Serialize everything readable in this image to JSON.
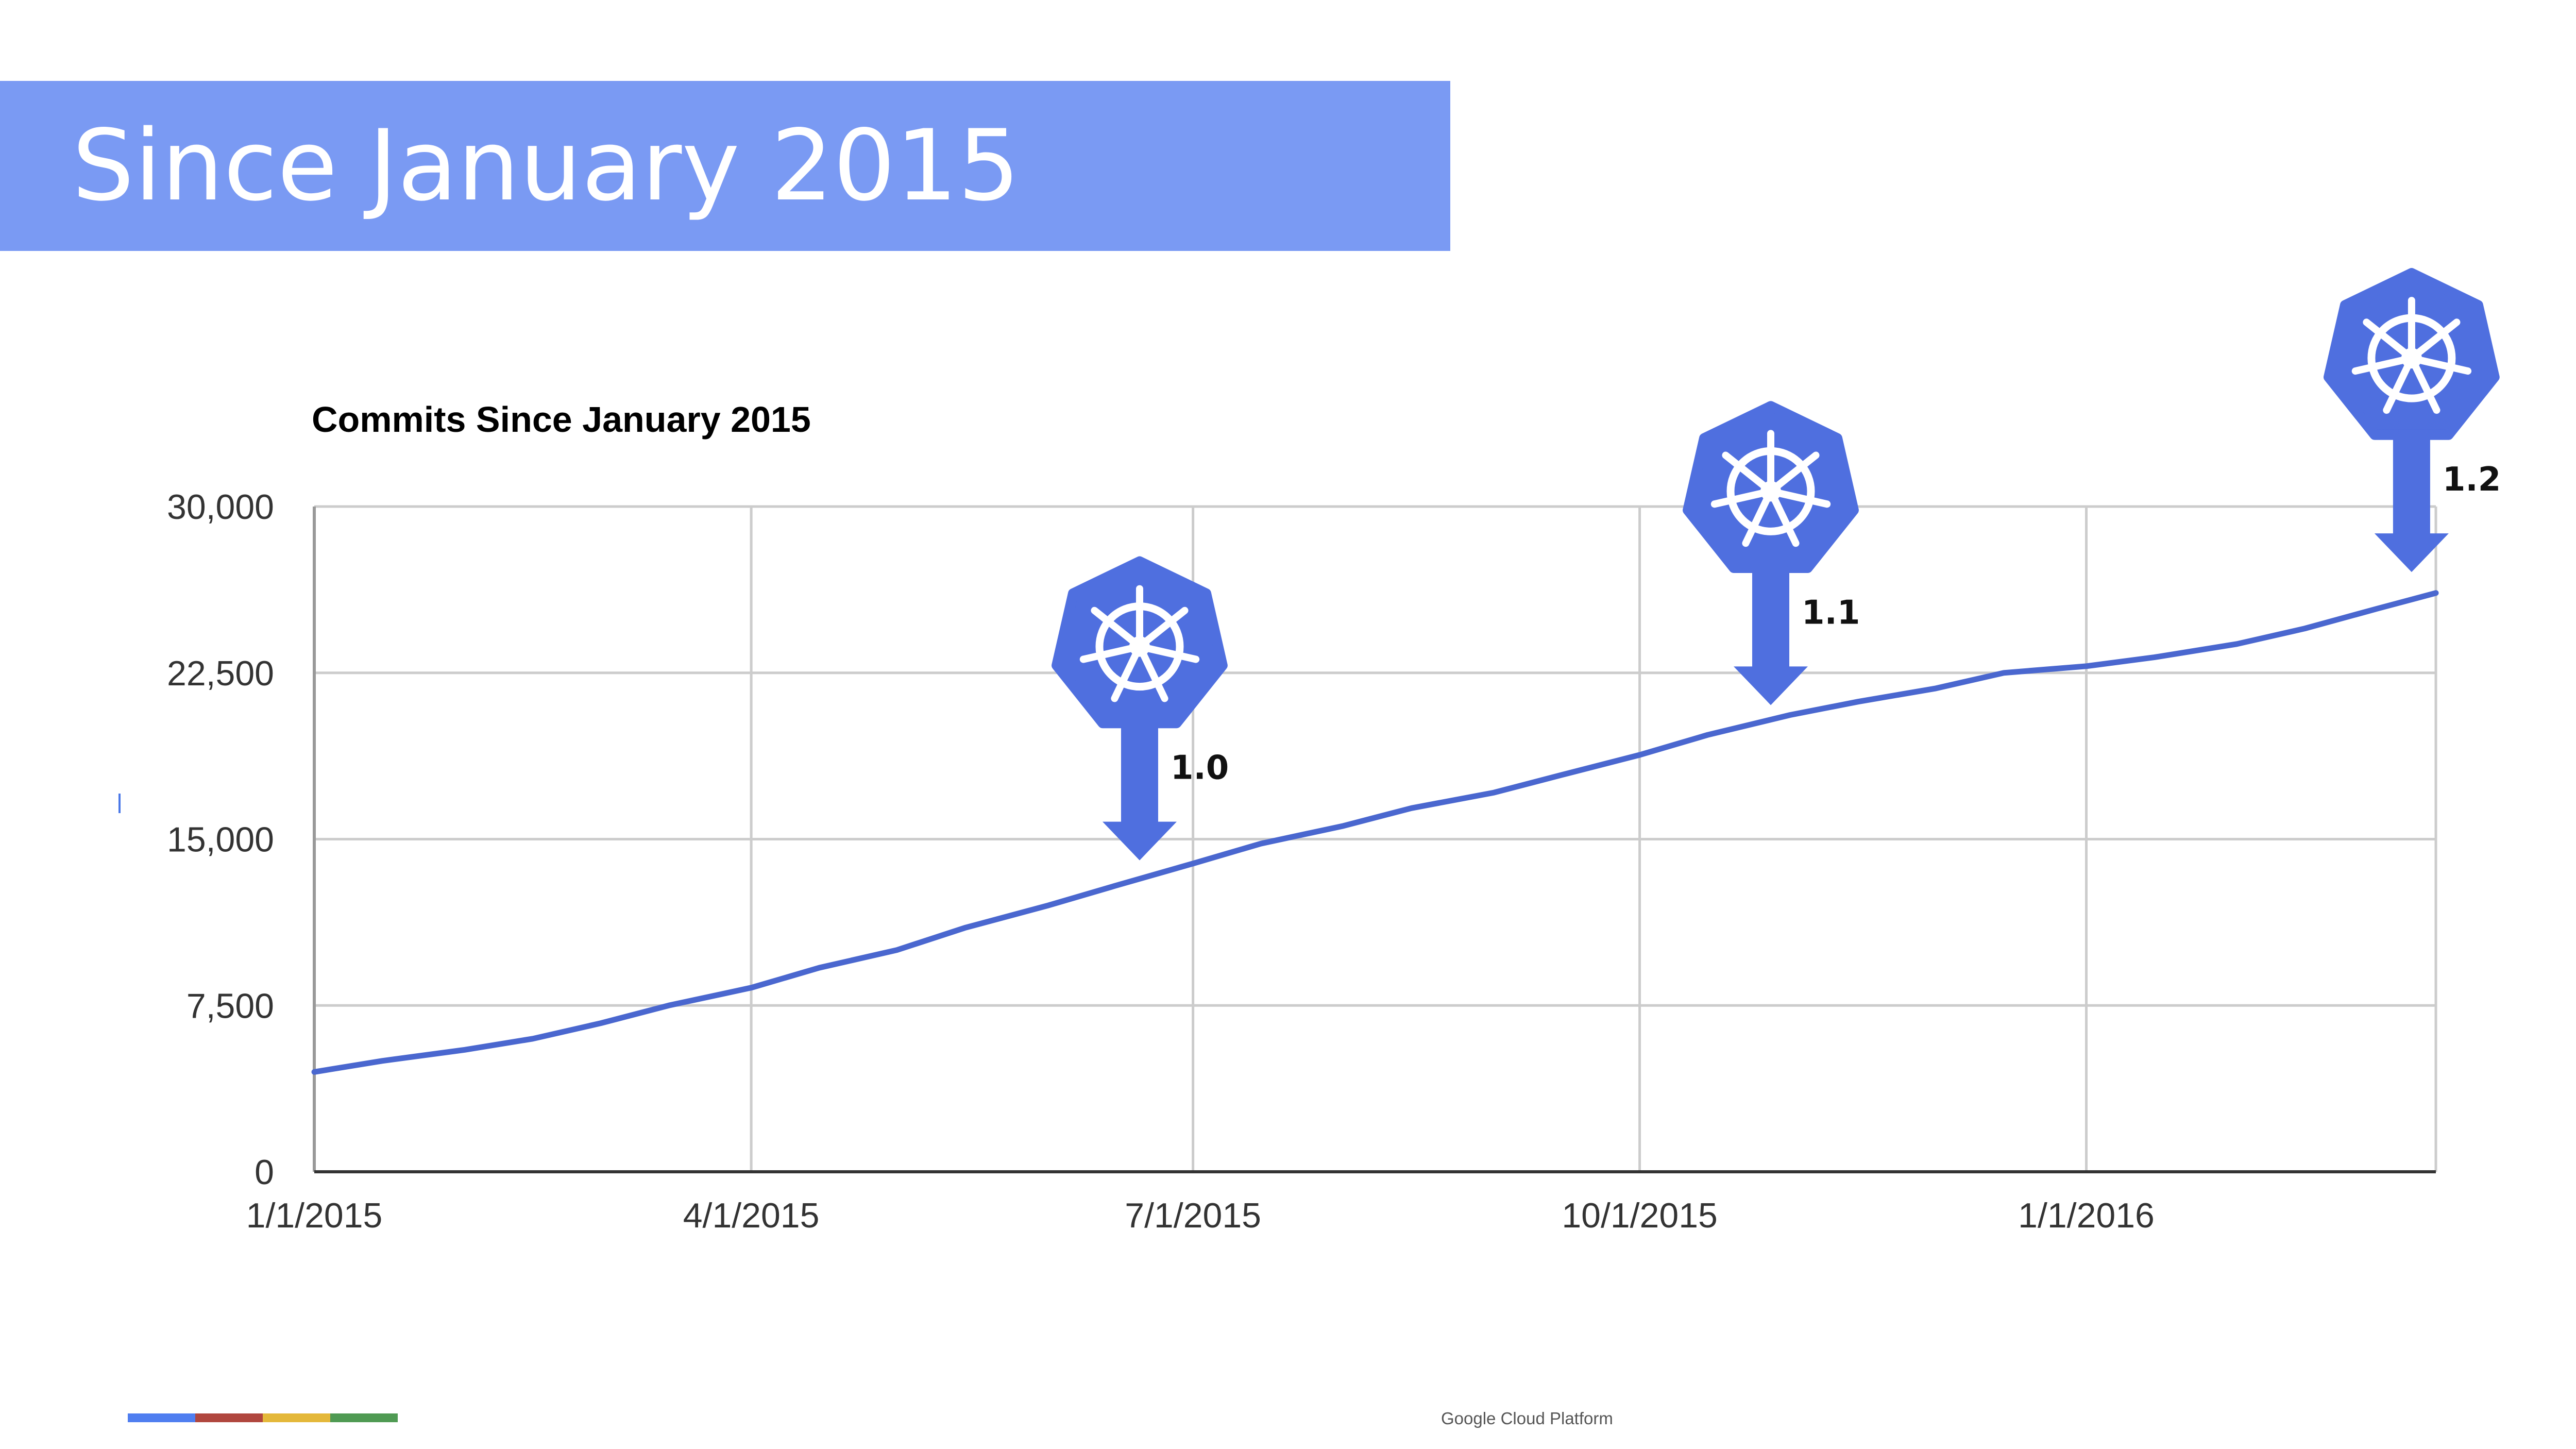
{
  "slide": {
    "title": "Since January 2015",
    "footer": "Google Cloud Platform",
    "title_bar_color": "#7a9af3",
    "footer_stripe_colors": [
      "#4f7ef0",
      "#b0463e",
      "#e4b83a",
      "#4f9a53"
    ]
  },
  "chart_data": {
    "type": "line",
    "title": "Commits Since January 2015",
    "xlabel": "",
    "ylabel": "",
    "x_ticks": [
      "1/1/2015",
      "4/1/2015",
      "7/1/2015",
      "10/1/2015",
      "1/1/2016"
    ],
    "y_ticks": [
      "0",
      "7,500",
      "15,000",
      "22,500",
      "30,000"
    ],
    "ylim": [
      0,
      30000
    ],
    "xlim": [
      "2015-01-01",
      "2016-03-13"
    ],
    "grid": true,
    "legend": "none",
    "line_color": "#4a67cf",
    "series": [
      {
        "x": [
          "2015-01-01",
          "2015-01-15",
          "2015-02-01",
          "2015-02-15",
          "2015-03-01",
          "2015-03-15",
          "2015-04-01",
          "2015-04-15",
          "2015-05-01",
          "2015-05-15",
          "2015-06-01",
          "2015-06-15",
          "2015-07-01",
          "2015-07-15",
          "2015-08-01",
          "2015-08-15",
          "2015-09-01",
          "2015-09-15",
          "2015-10-01",
          "2015-10-15",
          "2015-11-01",
          "2015-11-15",
          "2015-12-01",
          "2015-12-15",
          "2016-01-01",
          "2016-01-15",
          "2016-02-01",
          "2016-02-15",
          "2016-03-01",
          "2016-03-13"
        ],
        "values": [
          4500,
          5000,
          5500,
          6000,
          6700,
          7500,
          8300,
          9200,
          10000,
          11000,
          12000,
          12900,
          13900,
          14800,
          15600,
          16400,
          17100,
          17900,
          18800,
          19700,
          20600,
          21200,
          21800,
          22500,
          22800,
          23200,
          23800,
          24500,
          25400,
          26100
        ]
      }
    ],
    "annotations": [
      {
        "label": "1.0",
        "x": "2015-06-20",
        "y": 13000
      },
      {
        "label": "1.1",
        "x": "2015-10-28",
        "y": 20000
      },
      {
        "label": "1.2",
        "x": "2016-03-08",
        "y": 26000
      }
    ],
    "annotation_color": "#4f6fdf",
    "annotation_icon": "kubernetes-helm-logo-icon"
  }
}
